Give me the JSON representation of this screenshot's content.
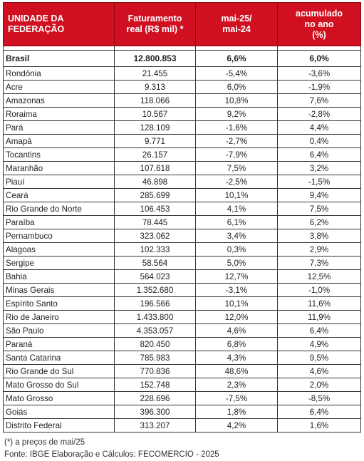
{
  "table": {
    "headers": {
      "uf": [
        "UNIDADE DA",
        "FEDERAÇÃO"
      ],
      "faturamento": [
        "Faturamento",
        "real (R$ mil) *"
      ],
      "mai": [
        "mai-25/",
        "mai-24"
      ],
      "acum": [
        "acumulado",
        "no ano",
        "(%)"
      ]
    },
    "brasil": {
      "name": "Brasil",
      "faturamento": "12.800.853",
      "mai": "6,6%",
      "acum": "6,0%"
    },
    "rows": [
      {
        "name": "Rondônia",
        "faturamento": "21.455",
        "mai": "-5,4%",
        "acum": "-3,6%"
      },
      {
        "name": "Acre",
        "faturamento": "9.313",
        "mai": "6,0%",
        "acum": "-1,9%"
      },
      {
        "name": "Amazonas",
        "faturamento": "118.066",
        "mai": "10,8%",
        "acum": "7,6%"
      },
      {
        "name": "Roraima",
        "faturamento": "10.567",
        "mai": "9,2%",
        "acum": "-2,8%"
      },
      {
        "name": "Pará",
        "faturamento": "128.109",
        "mai": "-1,6%",
        "acum": "4,4%"
      },
      {
        "name": "Amapá",
        "faturamento": "9.771",
        "mai": "-2,7%",
        "acum": "0,4%"
      },
      {
        "name": "Tocantins",
        "faturamento": "26.157",
        "mai": "-7,9%",
        "acum": "6,4%"
      },
      {
        "name": "Maranhão",
        "faturamento": "107.618",
        "mai": "7,5%",
        "acum": "3,2%"
      },
      {
        "name": "Piauí",
        "faturamento": "46.898",
        "mai": "-2,5%",
        "acum": "-1,5%"
      },
      {
        "name": "Ceará",
        "faturamento": "285.699",
        "mai": "10,1%",
        "acum": "9,4%"
      },
      {
        "name": "Rio Grande do Norte",
        "faturamento": "106.453",
        "mai": "4,1%",
        "acum": "7,5%"
      },
      {
        "name": "Paraíba",
        "faturamento": "78.445",
        "mai": "6,1%",
        "acum": "6,2%"
      },
      {
        "name": "Pernambuco",
        "faturamento": "323.062",
        "mai": "3,4%",
        "acum": "3,8%"
      },
      {
        "name": "Alagoas",
        "faturamento": "102.333",
        "mai": "0,3%",
        "acum": "2,9%"
      },
      {
        "name": "Sergipe",
        "faturamento": "58.564",
        "mai": "5,0%",
        "acum": "7,3%"
      },
      {
        "name": "Bahia",
        "faturamento": "564.023",
        "mai": "12,7%",
        "acum": "12,5%"
      },
      {
        "name": "Minas Gerais",
        "faturamento": "1.352.680",
        "mai": "-3,1%",
        "acum": "-1,0%"
      },
      {
        "name": "Espírito Santo",
        "faturamento": "196.566",
        "mai": "10,1%",
        "acum": "11,6%"
      },
      {
        "name": "Rio de Janeiro",
        "faturamento": "1.433.800",
        "mai": "12,0%",
        "acum": "11,9%"
      },
      {
        "name": "São Paulo",
        "faturamento": "4.353.057",
        "mai": "4,6%",
        "acum": "6,4%"
      },
      {
        "name": "Paraná",
        "faturamento": "820.450",
        "mai": "6,8%",
        "acum": "4,9%"
      },
      {
        "name": "Santa Catarina",
        "faturamento": "785.983",
        "mai": "4,3%",
        "acum": "9,5%"
      },
      {
        "name": "Rio Grande do Sul",
        "faturamento": "770.836",
        "mai": "48,6%",
        "acum": "4,6%"
      },
      {
        "name": "Mato Grosso do Sul",
        "faturamento": "152.748",
        "mai": "2,3%",
        "acum": "2,0%"
      },
      {
        "name": "Mato Grosso",
        "faturamento": "228.696",
        "mai": "-7,5%",
        "acum": "-8,5%"
      },
      {
        "name": "Goiás",
        "faturamento": "396.300",
        "mai": "1,8%",
        "acum": "6,4%"
      },
      {
        "name": "Distrito Federal",
        "faturamento": "313.207",
        "mai": "4,2%",
        "acum": "1,6%"
      }
    ]
  },
  "notes": {
    "footnote": "(*) a preços de mai/25",
    "source": "Fonte: IBGE Elaboração e Cálculos: FECOMERCIO - 2025"
  },
  "colors": {
    "header_bg": "#d01020",
    "header_text": "#ffffff"
  }
}
